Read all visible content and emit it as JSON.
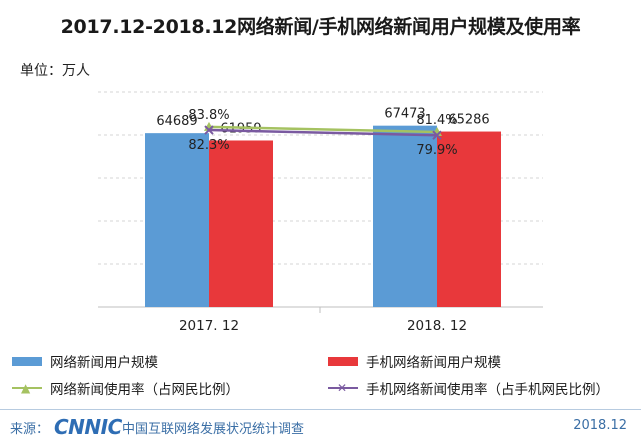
{
  "title": "2017.12-2018.12网络新闻/手机网络新闻用户规模及使用率",
  "unit_label": "单位：万人",
  "legend": {
    "bar1": "网络新闻用户规模",
    "bar2": "手机网络新闻用户规模",
    "line1": "网络新闻使用率（占网民比例）",
    "line2": "手机网络新闻使用率（占手机网民比例）"
  },
  "footer": {
    "source_label": "来源：",
    "logo": "CNNIC",
    "org": "中国互联网络发展状况统计调查",
    "date": "2018.12"
  },
  "colors": {
    "bar1": "#5b9bd5",
    "bar2": "#e8383b",
    "line1": "#a5c261",
    "line2": "#7a5aa0",
    "grid": "#d6d6d6"
  },
  "chart_data": {
    "type": "bar",
    "categories": [
      "2017. 12",
      "2018. 12"
    ],
    "series": [
      {
        "name": "网络新闻用户规模",
        "values": [
          64689,
          67473
        ],
        "labels": [
          "64689",
          "67473"
        ]
      },
      {
        "name": "手机网络新闻用户规模",
        "values": [
          61959,
          65286
        ],
        "labels": [
          "61959",
          "65286"
        ]
      }
    ],
    "line_series": [
      {
        "name": "网络新闻使用率（占网民比例）",
        "values": [
          83.8,
          81.4
        ],
        "labels": [
          "83.8%",
          "81.4%"
        ]
      },
      {
        "name": "手机网络新闻使用率（占手机网民比例）",
        "values": [
          82.3,
          79.9
        ],
        "labels": [
          "82.3%",
          "79.9%"
        ]
      }
    ],
    "ylim": [
      0,
      80000
    ],
    "grid": true,
    "legend_position": "bottom"
  }
}
